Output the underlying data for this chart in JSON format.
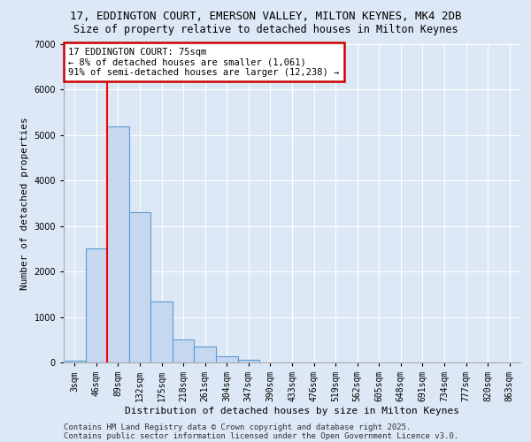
{
  "title_line1": "17, EDDINGTON COURT, EMERSON VALLEY, MILTON KEYNES, MK4 2DB",
  "title_line2": "Size of property relative to detached houses in Milton Keynes",
  "xlabel": "Distribution of detached houses by size in Milton Keynes",
  "ylabel": "Number of detached properties",
  "categories": [
    "3sqm",
    "46sqm",
    "89sqm",
    "132sqm",
    "175sqm",
    "218sqm",
    "261sqm",
    "304sqm",
    "347sqm",
    "390sqm",
    "433sqm",
    "476sqm",
    "519sqm",
    "562sqm",
    "605sqm",
    "648sqm",
    "691sqm",
    "734sqm",
    "777sqm",
    "820sqm",
    "863sqm"
  ],
  "values": [
    30,
    2500,
    5200,
    3300,
    1350,
    500,
    350,
    130,
    50,
    5,
    0,
    0,
    0,
    0,
    0,
    0,
    0,
    0,
    0,
    0,
    0
  ],
  "bar_color": "#c5d8ef",
  "bar_edge_color": "#5b9bd5",
  "red_line_x": 1.5,
  "annotation_text": "17 EDDINGTON COURT: 75sqm\n← 8% of detached houses are smaller (1,061)\n91% of semi-detached houses are larger (12,238) →",
  "annotation_box_color": "#ffffff",
  "annotation_box_edge": "#cc0000",
  "background_color": "#dce8f5",
  "plot_bg_color": "#dce8f5",
  "footer_line1": "Contains HM Land Registry data © Crown copyright and database right 2025.",
  "footer_line2": "Contains public sector information licensed under the Open Government Licence v3.0.",
  "ylim": [
    0,
    7000
  ],
  "yticks": [
    0,
    1000,
    2000,
    3000,
    4000,
    5000,
    6000,
    7000
  ],
  "grid_color": "#ffffff",
  "title_fontsize": 9,
  "subtitle_fontsize": 8.5,
  "axis_label_fontsize": 8,
  "tick_fontsize": 7,
  "footer_fontsize": 6.5,
  "ann_fontsize": 7.5
}
